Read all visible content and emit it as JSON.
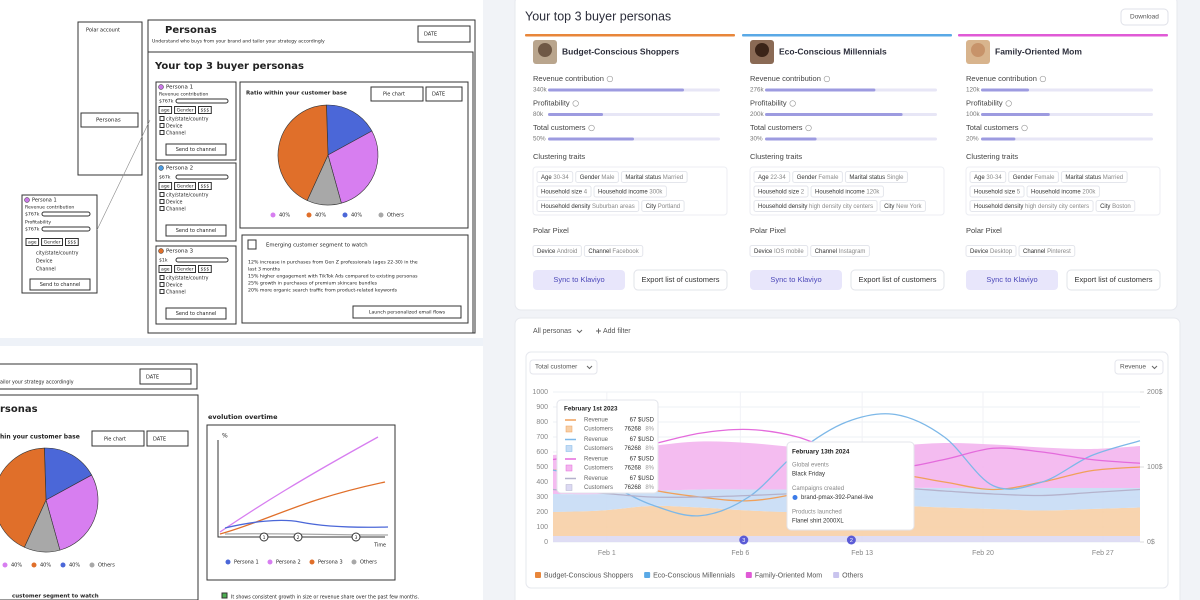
{
  "wireframe": {
    "sidebar": {
      "title": "Polar account",
      "item": "Personas"
    },
    "header": {
      "title": "Personas",
      "subtitle": "Understand who buys from your brand and tailor your strategy accordingly",
      "date": "DATE"
    },
    "section_title": "Your top 3 buyer personas",
    "personas": [
      {
        "name": "Persona 1",
        "metric": "Revenue contribution",
        "value": "$767k"
      },
      {
        "name": "Persona 2",
        "value": "$67k"
      },
      {
        "name": "Persona 3",
        "value": "$1k"
      }
    ],
    "tags": [
      "age",
      "Gender",
      "$$$"
    ],
    "location": "city/state/country",
    "device": "Device",
    "channel": "Channel",
    "send": "Send to channel",
    "floating": {
      "name": "Persona 1",
      "metric1": "Revenue contribution",
      "value1": "$767k",
      "metric2": "Profitability",
      "value2": "$767k"
    },
    "ratio": {
      "title": "Ratio within your customer base",
      "chart_type": "Pie chart",
      "date": "DATE",
      "legend": [
        "40%",
        "40%",
        "40%",
        "Others"
      ]
    },
    "segment": {
      "title": "Emerging customer segment to watch",
      "lines": [
        "12% increase in purchases from Gen Z professionals (ages 22-30) in the",
        "last 3 months",
        "15% higher engagement with TikTok Ads compared to existing personas",
        "25% growth in purchases of premium skincare bundles",
        "20% more organic search traffic from product-related keywords"
      ],
      "button": "Launch personalized email flows"
    },
    "bottom": {
      "subtitle": "ailor your strategy accordingly",
      "date": "DATE",
      "title": "rsonas",
      "ratio_title": "hin your customer base",
      "chart_type": "Pie chart",
      "date2": "DATE",
      "legend": [
        "40%",
        "40%",
        "40%",
        "Others"
      ],
      "evolution_title": "evolution overtime",
      "axis": "%",
      "x_axis": "Time",
      "markers": [
        "1",
        "2",
        "3"
      ],
      "legend2": [
        "Persona 1",
        "Persona 2",
        "Persona 3",
        "Others"
      ],
      "segment_title": "customer segment to watch",
      "note": "It shows consistent growth in size or revenue share over the past few months."
    }
  },
  "app": {
    "title": "Your top 3 buyer personas",
    "download": "Download",
    "personas": [
      {
        "name": "Budget-Conscious Shoppers",
        "color": "#e8863a",
        "traits": [
          [
            {
              "key": "Age",
              "value": "30-34"
            },
            {
              "key": "Gender",
              "value": "Male"
            },
            {
              "key": "Marital status",
              "value": "Married"
            }
          ],
          [
            {
              "key": "Household size",
              "value": "4"
            },
            {
              "key": "Household income",
              "value": "300k"
            }
          ],
          [
            {
              "key": "Household density",
              "value": "Suburban areas"
            },
            {
              "key": "City",
              "value": "Portland"
            }
          ]
        ],
        "pixel": [
          {
            "key": "Device",
            "value": "Android"
          },
          {
            "key": "Channel",
            "value": "Facebook"
          }
        ]
      },
      {
        "name": "Eco-Conscious Millennials",
        "color": "#5aa9e6",
        "traits": [
          [
            {
              "key": "Age",
              "value": "22-34"
            },
            {
              "key": "Gender",
              "value": "Female"
            },
            {
              "key": "Marital status",
              "value": "Single"
            }
          ],
          [
            {
              "key": "Household size",
              "value": "2"
            },
            {
              "key": "Household income",
              "value": "120k"
            }
          ],
          [
            {
              "key": "Household density",
              "value": "high density city centers"
            },
            {
              "key": "City",
              "value": "New York"
            }
          ]
        ],
        "pixel": [
          {
            "key": "Device",
            "value": "IOS mobile"
          },
          {
            "key": "Channel",
            "value": "Instagram"
          }
        ]
      },
      {
        "name": "Family-Oriented Mom",
        "color": "#e05ad6",
        "traits": [
          [
            {
              "key": "Age",
              "value": "30-34"
            },
            {
              "key": "Gender",
              "value": "Female"
            },
            {
              "key": "Marital status",
              "value": "Married"
            }
          ],
          [
            {
              "key": "Household size",
              "value": "5"
            },
            {
              "key": "Household income",
              "value": "200k"
            }
          ],
          [
            {
              "key": "Household density",
              "value": "high density city centers"
            },
            {
              "key": "City",
              "value": "Boston"
            }
          ]
        ],
        "pixel": [
          {
            "key": "Device",
            "value": "Desktop"
          },
          {
            "key": "Channel",
            "value": "Pinterest"
          }
        ]
      }
    ],
    "metrics": [
      {
        "name": "Revenue contribution",
        "xlim": [
          0,
          430
        ],
        "values": [
          340,
          276,
          120
        ],
        "value_labels": [
          "340k",
          "276k",
          "120k"
        ]
      },
      {
        "name": "Profitability",
        "xlim": [
          0,
          250
        ],
        "values": [
          80,
          200,
          100
        ],
        "value_labels": [
          "80k",
          "200k",
          "100k"
        ]
      },
      {
        "name": "Total customers",
        "xlim": [
          0,
          100
        ],
        "values": [
          50,
          30,
          20
        ],
        "value_labels": [
          "50%",
          "30%",
          "20%"
        ]
      }
    ],
    "clustering_title": "Clustering traits",
    "pixel_title": "Polar Pixel",
    "sync": "Sync to Klaviyo",
    "export": "Export list of customers",
    "filters": {
      "personas": "All personas",
      "add": "Add filter"
    }
  },
  "chart_data": {
    "type": "area",
    "stacked": true,
    "grid": true,
    "left_selector": "Total customer",
    "right_selector": "Revenue",
    "x": [
      0,
      1,
      2,
      3,
      4,
      5,
      6,
      7,
      8,
      9,
      10,
      11,
      12
    ],
    "xlim": [
      0,
      12
    ],
    "xticks": [
      {
        "value": 1.1,
        "label": "Feb 1"
      },
      {
        "value": 3.83,
        "label": "Feb 6"
      },
      {
        "value": 6.32,
        "label": "Feb 13"
      },
      {
        "value": 8.79,
        "label": "Feb 20"
      },
      {
        "value": 11.24,
        "label": "Feb 27"
      }
    ],
    "ylim": [
      0,
      1000
    ],
    "yticks": [
      0,
      100,
      200,
      300,
      400,
      500,
      600,
      700,
      800,
      900,
      1000
    ],
    "y2lim": [
      0,
      200
    ],
    "y2ticks": [
      {
        "value": 0,
        "label": "0$"
      },
      {
        "value": 100,
        "label": "100$"
      },
      {
        "value": 200,
        "label": "200$"
      }
    ],
    "series": [
      {
        "name": "Budget-Conscious Shoppers",
        "color": "#f7cfa6",
        "legend_color": "#e8863a",
        "values": [
          160,
          170,
          200,
          190,
          170,
          160,
          180,
          200,
          190,
          180,
          170,
          180,
          190
        ]
      },
      {
        "name": "Eco-Conscious Millennials",
        "color": "#c6dcf5",
        "legend_color": "#5aa9e6",
        "values": [
          120,
          110,
          100,
          120,
          140,
          150,
          130,
          120,
          130,
          140,
          150,
          140,
          130
        ]
      },
      {
        "name": "Family-Oriented Mom",
        "color": "#f3b5ee",
        "legend_color": "#e05ad6",
        "values": [
          260,
          280,
          300,
          320,
          310,
          280,
          260,
          280,
          300,
          290,
          270,
          260,
          280
        ]
      },
      {
        "name": "Others",
        "color": "#dcd9f3",
        "legend_color": "#c9c4ee",
        "values": [
          40,
          40,
          40,
          40,
          40,
          40,
          40,
          40,
          40,
          40,
          40,
          40,
          40
        ]
      }
    ],
    "stack_order": [
      3,
      0,
      1,
      2
    ],
    "lines": [
      {
        "color": "#f0a05a",
        "axis": "y2",
        "values": [
          96,
          90,
          70,
          60,
          55,
          65,
          85,
          90,
          80,
          70,
          80,
          95,
          100
        ]
      },
      {
        "color": "#7db8e8",
        "axis": "y2",
        "values": [
          96,
          80,
          50,
          35,
          60,
          120,
          160,
          170,
          140,
          75,
          80,
          115,
          135
        ]
      },
      {
        "color": "#e46bdc",
        "axis": "y2",
        "values": [
          110,
          118,
          130,
          145,
          150,
          140,
          115,
          100,
          110,
          125,
          120,
          110,
          105
        ]
      },
      {
        "color": "#b4b2cc",
        "axis": "y2",
        "values": [
          70,
          65,
          60,
          60,
          62,
          65,
          70,
          72,
          68,
          64,
          62,
          66,
          70
        ]
      }
    ],
    "markers": [
      {
        "x": 3.9,
        "label": "3"
      },
      {
        "x": 6.1,
        "label": "2"
      }
    ],
    "tooltip1": {
      "title": "February 1st 2023",
      "revenue_label": "Revenue",
      "customers_label": "Customers",
      "rows": [
        {
          "revenue": "67 $USD",
          "customers": "76268",
          "share": "8%"
        },
        {
          "revenue": "67 $USD",
          "customers": "76268",
          "share": "8%"
        },
        {
          "revenue": "67 $USD",
          "customers": "76268",
          "share": "8%"
        },
        {
          "revenue": "67 $USD",
          "customers": "76268",
          "share": "8%"
        }
      ]
    },
    "tooltip2": {
      "title": "February 13th 2024",
      "sections": [
        {
          "label": "Global events",
          "value": "Black Friday"
        },
        {
          "label": "Campaigns created",
          "value": "brand-pmax-392-Panel-live"
        },
        {
          "label": "Products launched",
          "value": "Flanel shirt 2000XL"
        }
      ]
    }
  }
}
